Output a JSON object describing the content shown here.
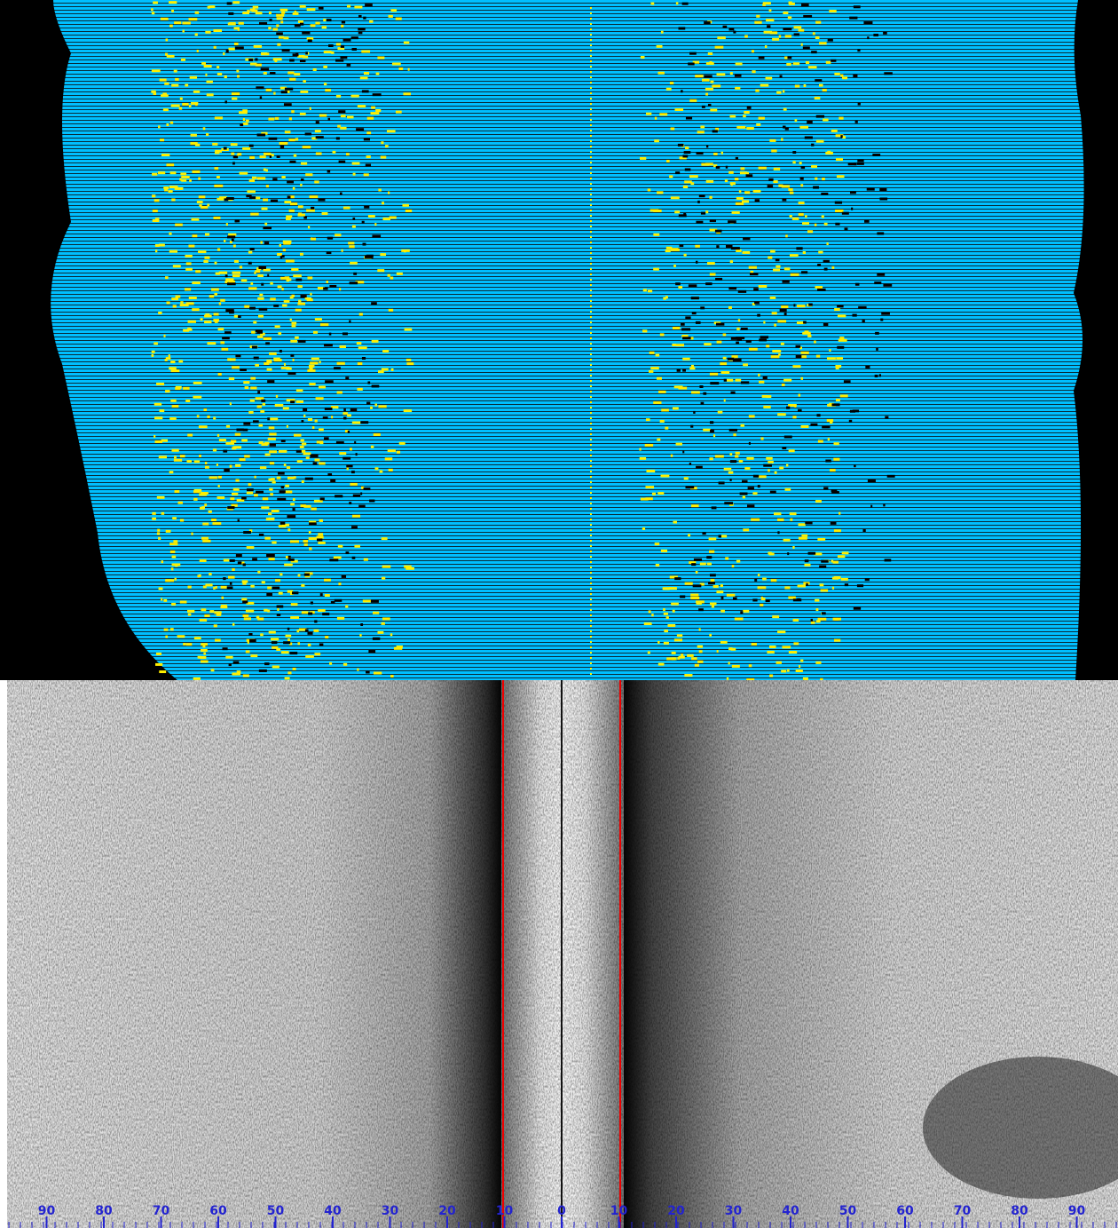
{
  "range_scale": {
    "labels": [
      "90",
      "80",
      "70",
      "60",
      "50",
      "40",
      "30",
      "20",
      "10",
      "0",
      "10",
      "20",
      "30",
      "40",
      "50",
      "60",
      "70",
      "80",
      "90"
    ]
  }
}
